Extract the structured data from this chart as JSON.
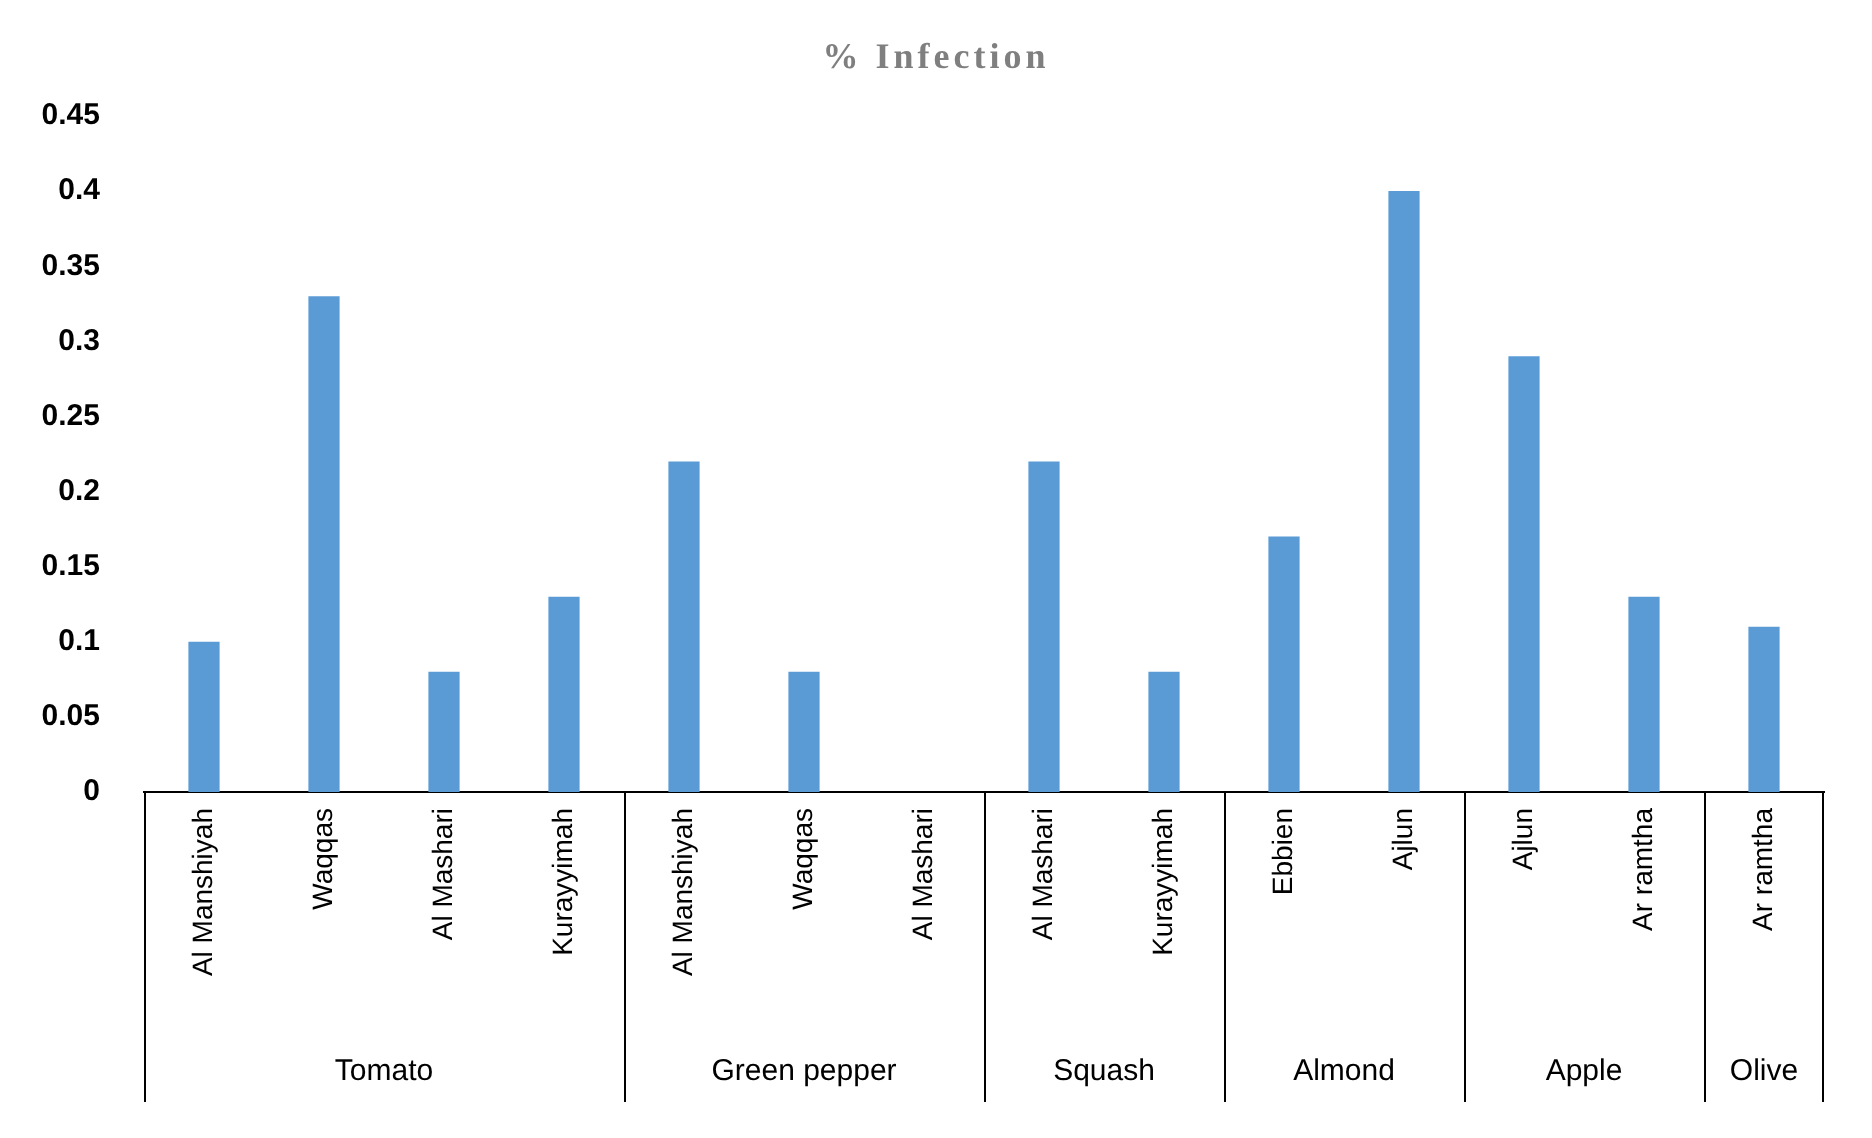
{
  "chart_data": [
    {
      "type": "other",
      "title": "% Infection"
    },
    {
      "type": "bar",
      "xlabel": "Tomato",
      "categories": [
        "Al Manshiyah",
        "Waqqas",
        "Al Mashari",
        "Kurayyimah"
      ],
      "values": [
        0.1,
        0.33,
        0.08,
        0.13
      ],
      "color": "#5b9bd5",
      "ylim": [
        0,
        0.45
      ],
      "yticks": [
        0,
        0.05,
        0.1,
        0.15,
        0.2,
        0.25,
        0.3,
        0.35,
        0.4,
        0.45
      ],
      "grid": false,
      "legend": false
    },
    {
      "type": "bar",
      "xlabel": "Green pepper",
      "categories": [
        "Al Manshiyah",
        "Waqqas",
        "Al Mashari"
      ],
      "values": [
        0.22,
        0.08,
        0
      ],
      "color": "#5b9bd5",
      "ylim": [
        0,
        0.45
      ],
      "yticks": [
        0,
        0.05,
        0.1,
        0.15,
        0.2,
        0.25,
        0.3,
        0.35,
        0.4,
        0.45
      ],
      "grid": false,
      "legend": false,
      "tick_labels": "x"
    },
    {
      "type": "bar",
      "xlabel": "Squash",
      "categories": [
        "Al Mashari",
        "Kurayyimah"
      ],
      "values": [
        0.22,
        0.08
      ],
      "color": "#5b9bd5",
      "ylim": [
        0,
        0.45
      ],
      "yticks": [
        0,
        0.05,
        0.1,
        0.15,
        0.2,
        0.25,
        0.3,
        0.35,
        0.4,
        0.45
      ],
      "grid": false,
      "legend": false,
      "tick_labels": "x"
    },
    {
      "type": "bar",
      "xlabel": "Almond",
      "categories": [
        "Ebbien",
        "Ajlun"
      ],
      "values": [
        0.17,
        0.4
      ],
      "color": "#5b9bd5",
      "ylim": [
        0,
        0.45
      ],
      "yticks": [
        0,
        0.05,
        0.1,
        0.15,
        0.2,
        0.25,
        0.3,
        0.35,
        0.4,
        0.45
      ],
      "grid": false,
      "legend": false,
      "tick_labels": "x"
    },
    {
      "type": "bar",
      "xlabel": "Apple",
      "categories": [
        "Ajlun",
        "Ar ramtha"
      ],
      "values": [
        0.29,
        0.13
      ],
      "color": "#5b9bd5",
      "ylim": [
        0,
        0.45
      ],
      "yticks": [
        0,
        0.05,
        0.1,
        0.15,
        0.2,
        0.25,
        0.3,
        0.35,
        0.4,
        0.45
      ],
      "grid": false,
      "legend": false,
      "tick_labels": "x"
    },
    {
      "type": "bar",
      "xlabel": "Olive",
      "categories": [
        "Ar ramtha"
      ],
      "values": [
        0.11
      ],
      "color": "#5b9bd5",
      "ylim": [
        0,
        0.45
      ],
      "yticks": [
        0,
        0.05,
        0.1,
        0.15,
        0.2,
        0.25,
        0.3,
        0.35,
        0.4,
        0.45
      ],
      "grid": false,
      "legend": false,
      "tick_labels": "x"
    }
  ]
}
